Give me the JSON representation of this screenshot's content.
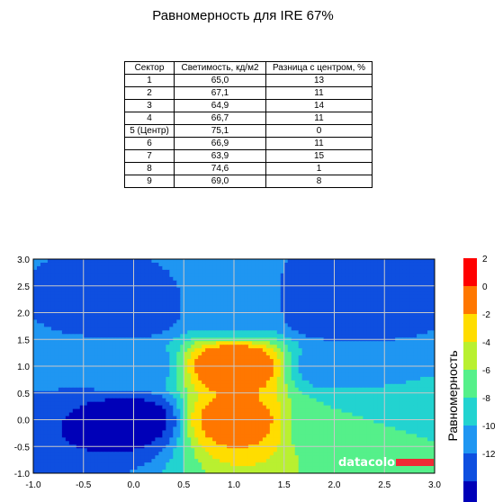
{
  "title": "Равномерность для IRE 67%",
  "table": {
    "headers": [
      "Сектор",
      "Светимость, кд/м2",
      "Разница с центром, %"
    ],
    "rows": [
      [
        "1",
        "65,0",
        "13"
      ],
      [
        "2",
        "67,1",
        "11"
      ],
      [
        "3",
        "64,9",
        "14"
      ],
      [
        "4",
        "66,7",
        "11"
      ],
      [
        "5 (Центр)",
        "75,1",
        "0"
      ],
      [
        "6",
        "66,9",
        "11"
      ],
      [
        "7",
        "63,9",
        "15"
      ],
      [
        "8",
        "74,6",
        "1"
      ],
      [
        "9",
        "69,0",
        "8"
      ]
    ]
  },
  "chart_data": {
    "type": "heatmap",
    "variant": "filled-contour",
    "xlim": [
      -1.0,
      3.0
    ],
    "ylim": [
      -1.0,
      3.0
    ],
    "x_ticks": [
      "-1.0",
      "-0.5",
      "0.0",
      "0.5",
      "1.0",
      "1.5",
      "2.0",
      "2.5",
      "3.0"
    ],
    "y_ticks": [
      "3.0",
      "2.5",
      "2.0",
      "1.5",
      "1.0",
      "0.5",
      "0.0",
      "-0.5",
      "-1.0"
    ],
    "grid": true,
    "colorbar": {
      "label": "Равномерность",
      "ticks": [
        "2",
        "0",
        "-2",
        "-4",
        "-6",
        "-8",
        "-10",
        "-12"
      ],
      "levels": [
        {
          "from": 0,
          "to": 2,
          "color": "#ff0000"
        },
        {
          "from": -2,
          "to": 0,
          "color": "#ff7700"
        },
        {
          "from": -4,
          "to": -2,
          "color": "#ffdd00"
        },
        {
          "from": -6,
          "to": -4,
          "color": "#b9f030"
        },
        {
          "from": -8,
          "to": -6,
          "color": "#55f08a"
        },
        {
          "from": -10,
          "to": -8,
          "color": "#22d3d0"
        },
        {
          "from": -12,
          "to": -10,
          "color": "#1f96f2"
        },
        {
          "from": -14,
          "to": -12,
          "color": "#0e4fe0"
        },
        {
          "from": -16,
          "to": -14,
          "color": "#0000b8"
        }
      ]
    },
    "sectors": [
      {
        "sector": "1",
        "x": 0,
        "y": 2,
        "diff_pct": 13
      },
      {
        "sector": "2",
        "x": 1,
        "y": 2,
        "diff_pct": 11
      },
      {
        "sector": "3",
        "x": 2,
        "y": 2,
        "diff_pct": 14
      },
      {
        "sector": "4",
        "x": 0,
        "y": 1,
        "diff_pct": 11
      },
      {
        "sector": "5 (Центр)",
        "x": 1,
        "y": 1,
        "diff_pct": 0
      },
      {
        "sector": "6",
        "x": 2,
        "y": 1,
        "diff_pct": 11
      },
      {
        "sector": "7",
        "x": 0,
        "y": 0,
        "diff_pct": 15
      },
      {
        "sector": "8",
        "x": 1,
        "y": 0,
        "diff_pct": 1
      },
      {
        "sector": "9",
        "x": 2,
        "y": 0,
        "diff_pct": 8
      }
    ],
    "watermark": "datacolor"
  }
}
